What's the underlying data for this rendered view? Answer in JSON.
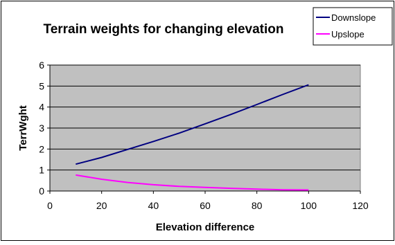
{
  "chart_data": {
    "type": "line",
    "title": "Terrain weights for changing elevation",
    "xlabel": "Elevation difference",
    "ylabel": "TerrWght",
    "xlim": [
      0,
      120
    ],
    "ylim": [
      0,
      6
    ],
    "xticks": [
      "0",
      "20",
      "40",
      "60",
      "80",
      "100",
      "120"
    ],
    "yticks": [
      "0",
      "1",
      "2",
      "3",
      "4",
      "5",
      "6"
    ],
    "grid": true,
    "legend": "top-right",
    "x": [
      10,
      20,
      30,
      40,
      50,
      60,
      70,
      80,
      90,
      100
    ],
    "series": [
      {
        "name": "Downslope",
        "color": "#000080",
        "values": [
          1.28,
          1.6,
          1.98,
          2.36,
          2.76,
          3.2,
          3.65,
          4.12,
          4.6,
          5.06
        ]
      },
      {
        "name": "Upslope",
        "color": "#ff00ff",
        "values": [
          0.76,
          0.56,
          0.41,
          0.3,
          0.22,
          0.17,
          0.13,
          0.09,
          0.06,
          0.05
        ]
      }
    ],
    "plot_background": "#c0c0c0"
  }
}
